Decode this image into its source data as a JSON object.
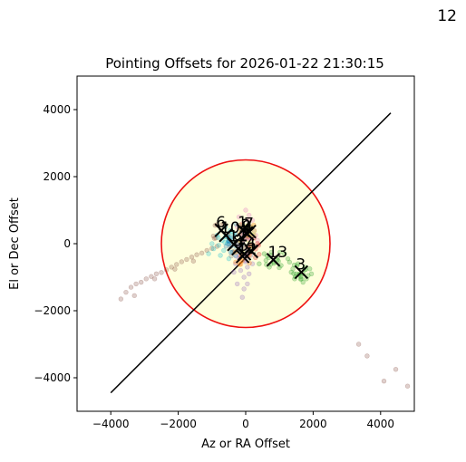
{
  "figure": {
    "corner_label": "12"
  },
  "chart_data": {
    "type": "scatter",
    "title": "Pointing Offsets for 2026-01-22 21:30:15",
    "xlabel": "Az or RA Offset",
    "ylabel": "El or Dec Offset",
    "xlim": [
      -5000,
      5000
    ],
    "ylim": [
      -5000,
      5000
    ],
    "xticks": [
      -4000,
      -2000,
      0,
      2000,
      4000
    ],
    "yticks": [
      -4000,
      -2000,
      0,
      2000,
      4000
    ],
    "xtick_labels": [
      "−4000",
      "−2000",
      "0",
      "2000",
      "4000"
    ],
    "ytick_labels": [
      "−4000",
      "−2000",
      "0",
      "2000",
      "4000"
    ],
    "grid": false,
    "circle": {
      "center": [
        0,
        0
      ],
      "radius": 2500,
      "edge_color": "#ee1111",
      "fill_color": "#ffffdd"
    },
    "diagonal_line": {
      "x": [
        -4000,
        4300
      ],
      "y": [
        -4450,
        3900
      ],
      "color": "#000000"
    },
    "clusters": [
      {
        "name": "1",
        "color": "#1f77b4",
        "center": [
          -80,
          400
        ]
      },
      {
        "name": "2",
        "color": "#ff7f0e",
        "center": [
          20,
          320
        ]
      },
      {
        "name": "3",
        "color": "#2ca02c",
        "center": [
          1650,
          -850
        ]
      },
      {
        "name": "4",
        "color": "#d62728",
        "center": [
          170,
          -230
        ]
      },
      {
        "name": "5",
        "color": "#9467bd",
        "center": [
          -40,
          -300
        ]
      },
      {
        "name": "6",
        "color": "#8c564b",
        "center": [
          -720,
          400
        ]
      },
      {
        "name": "7",
        "color": "#e377c2",
        "center": [
          110,
          360
        ]
      },
      {
        "name": "8",
        "color": "#7f7f7f",
        "center": [
          -220,
          -150
        ]
      },
      {
        "name": "9",
        "color": "#bcbd22",
        "center": [
          50,
          290
        ]
      },
      {
        "name": "10",
        "color": "#17becf",
        "center": [
          -590,
          250
        ]
      },
      {
        "name": "11",
        "color": "#1f77b4",
        "center": [
          -350,
          -20
        ]
      },
      {
        "name": "12",
        "color": "#ff7f0e",
        "center": [
          -90,
          -380
        ]
      },
      {
        "name": "13",
        "color": "#2ca02c",
        "center": [
          820,
          -480
        ]
      }
    ],
    "scatter_trails": [
      {
        "color": "#8c564b",
        "points": [
          [
            -3700,
            -1650
          ],
          [
            -3550,
            -1450
          ],
          [
            -3400,
            -1300
          ],
          [
            -3250,
            -1200
          ],
          [
            -3100,
            -1150
          ],
          [
            -2950,
            -1050
          ],
          [
            -2800,
            -980
          ],
          [
            -2650,
            -900
          ],
          [
            -2500,
            -860
          ],
          [
            -2350,
            -780
          ],
          [
            -2200,
            -700
          ],
          [
            -2050,
            -620
          ],
          [
            -1900,
            -540
          ],
          [
            -1750,
            -470
          ],
          [
            -1600,
            -400
          ],
          [
            -1450,
            -330
          ],
          [
            -1300,
            -280
          ],
          [
            -1150,
            -200
          ],
          [
            -1000,
            -140
          ],
          [
            -850,
            -80
          ],
          [
            -3300,
            -1550
          ],
          [
            -2700,
            -1050
          ],
          [
            -2100,
            -760
          ],
          [
            -1550,
            -520
          ],
          [
            3350,
            -3000
          ],
          [
            3600,
            -3350
          ],
          [
            4100,
            -4100
          ],
          [
            4450,
            -3750
          ],
          [
            4800,
            -4250
          ]
        ]
      },
      {
        "color": "#17becf",
        "points": [
          [
            -1100,
            -300
          ],
          [
            -950,
            -150
          ],
          [
            -800,
            -50
          ],
          [
            -700,
            100
          ],
          [
            -600,
            200
          ],
          [
            -500,
            300
          ],
          [
            -450,
            150
          ],
          [
            -350,
            50
          ],
          [
            -850,
            250
          ],
          [
            -650,
            -200
          ],
          [
            -550,
            0
          ],
          [
            -400,
            -250
          ],
          [
            -300,
            -350
          ],
          [
            -1000,
            0
          ],
          [
            -750,
            -350
          ],
          [
            -500,
            -450
          ]
        ]
      },
      {
        "color": "#2ca02c",
        "points": [
          [
            400,
            -600
          ],
          [
            550,
            -300
          ],
          [
            600,
            -500
          ],
          [
            700,
            -700
          ],
          [
            750,
            -350
          ],
          [
            850,
            -550
          ],
          [
            950,
            -400
          ],
          [
            1050,
            -650
          ],
          [
            1150,
            -300
          ],
          [
            1300,
            -550
          ],
          [
            1400,
            -750
          ],
          [
            1450,
            -1050
          ],
          [
            1550,
            -600
          ],
          [
            1600,
            -900
          ],
          [
            1700,
            -1150
          ],
          [
            1750,
            -700
          ],
          [
            1850,
            -950
          ],
          [
            1900,
            -750
          ],
          [
            1500,
            -900
          ],
          [
            1650,
            -1050
          ],
          [
            1350,
            -850
          ],
          [
            1800,
            -1050
          ],
          [
            1950,
            -900
          ],
          [
            1250,
            -450
          ]
        ]
      },
      {
        "color": "#9467bd",
        "points": [
          [
            -300,
            -600
          ],
          [
            -150,
            -800
          ],
          [
            -50,
            -1000
          ],
          [
            50,
            -700
          ],
          [
            -250,
            -1200
          ],
          [
            -100,
            -1600
          ],
          [
            0,
            -500
          ],
          [
            100,
            -900
          ],
          [
            -200,
            -450
          ],
          [
            150,
            -350
          ],
          [
            -350,
            -850
          ],
          [
            -50,
            -1350
          ],
          [
            50,
            -1200
          ],
          [
            200,
            -600
          ]
        ]
      },
      {
        "color": "#e377c2",
        "points": [
          [
            -200,
            800
          ],
          [
            -100,
            600
          ],
          [
            0,
            1000
          ],
          [
            50,
            700
          ],
          [
            150,
            500
          ],
          [
            250,
            400
          ],
          [
            -250,
            500
          ],
          [
            -50,
            450
          ],
          [
            100,
            850
          ],
          [
            300,
            250
          ],
          [
            350,
            100
          ],
          [
            200,
            700
          ]
        ]
      },
      {
        "color": "#bcbd22",
        "points": [
          [
            -150,
            50
          ],
          [
            0,
            -100
          ],
          [
            100,
            100
          ],
          [
            150,
            -50
          ],
          [
            -100,
            -200
          ],
          [
            50,
            200
          ],
          [
            200,
            -150
          ]
        ]
      }
    ]
  }
}
